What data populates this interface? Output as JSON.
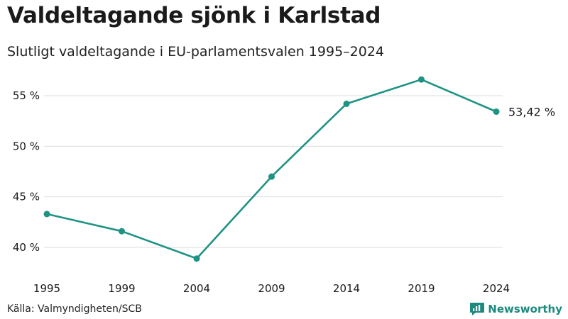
{
  "header": {
    "title": "Valdeltagande sjönk i Karlstad",
    "subtitle": "Slutligt valdeltagande i EU-parlamentsvalen 1995–2024"
  },
  "footer": {
    "source": "Källa: Valmyndigheten/SCB",
    "brand": "Newsworthy",
    "brand_icon": "newsworthy-logo-icon"
  },
  "colors": {
    "line": "#1e9384",
    "grid": "#dddddd",
    "text": "#1a1a1a",
    "brand": "#1e8a7e"
  },
  "chart_data": {
    "type": "line",
    "title": "Valdeltagande sjönk i Karlstad",
    "subtitle": "Slutligt valdeltagande i EU-parlamentsvalen 1995–2024",
    "x": [
      "1995",
      "1999",
      "2004",
      "2009",
      "2014",
      "2019",
      "2024"
    ],
    "series": [
      {
        "values": [
          43.3,
          41.6,
          38.9,
          47.0,
          54.2,
          56.6,
          53.42
        ]
      }
    ],
    "y_ticks": [
      40,
      45,
      50,
      55
    ],
    "y_tick_labels": [
      "40 %",
      "45 %",
      "50 %",
      "55 %"
    ],
    "ylim": [
      38,
      58
    ],
    "end_label": "53,42 %",
    "grid": "horizontal",
    "markers": true
  }
}
